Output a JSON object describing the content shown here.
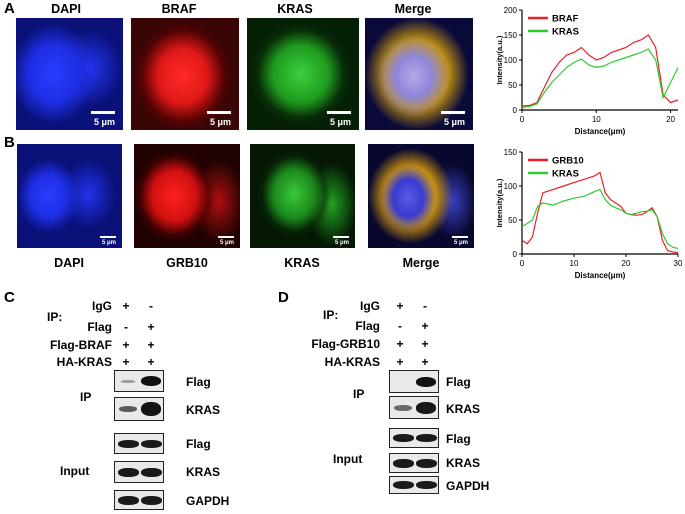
{
  "panel_letters": {
    "a": "A",
    "b": "B",
    "c": "C",
    "d": "D"
  },
  "row_a": {
    "titles": [
      "DAPI",
      "BRAF",
      "KRAS",
      "Merge"
    ],
    "scale_label": "5 μm"
  },
  "row_b": {
    "titles": [
      "DAPI",
      "GRB10",
      "KRAS",
      "Merge"
    ],
    "scale_label": "5 μm"
  },
  "colors": {
    "red": "#e8202a",
    "green": "#2ecc2e",
    "blue": "#1b2ee8"
  },
  "chart_data": [
    {
      "type": "line",
      "xlabel": "Distance(μm)",
      "ylabel": "Intensity(a.u.)",
      "xlim": [
        0,
        21
      ],
      "ylim": [
        0,
        200
      ],
      "xticks": [
        0,
        10,
        20
      ],
      "yticks": [
        0,
        50,
        100,
        150,
        200
      ],
      "legend_placement": "top-left",
      "series": [
        {
          "name": "BRAF",
          "color": "#e8202a",
          "x": [
            0,
            1,
            2,
            3,
            4,
            5,
            6,
            7,
            8,
            9,
            10,
            11,
            12,
            13,
            14,
            15,
            16,
            17,
            18,
            19,
            20,
            21
          ],
          "y": [
            8,
            9,
            15,
            45,
            75,
            95,
            110,
            115,
            125,
            110,
            100,
            105,
            115,
            120,
            125,
            135,
            140,
            150,
            125,
            30,
            15,
            20
          ]
        },
        {
          "name": "KRAS",
          "color": "#2ecc2e",
          "x": [
            0,
            1,
            2,
            3,
            4,
            5,
            6,
            7,
            8,
            9,
            10,
            11,
            12,
            13,
            14,
            15,
            16,
            17,
            18,
            19,
            20,
            21
          ],
          "y": [
            5,
            7,
            12,
            35,
            55,
            70,
            85,
            95,
            102,
            90,
            85,
            88,
            95,
            100,
            105,
            110,
            115,
            122,
            100,
            25,
            55,
            85
          ]
        }
      ]
    },
    {
      "type": "line",
      "xlabel": "Distance(μm)",
      "ylabel": "Intensity(a.u.)",
      "xlim": [
        0,
        30
      ],
      "ylim": [
        0,
        150
      ],
      "xticks": [
        0,
        10,
        20,
        30
      ],
      "yticks": [
        0,
        50,
        100,
        150
      ],
      "legend_placement": "top-left",
      "series": [
        {
          "name": "GRB10",
          "color": "#e8202a",
          "x": [
            0,
            1,
            2,
            3,
            4,
            6,
            8,
            10,
            12,
            14,
            15,
            16,
            17,
            18,
            19,
            20,
            21,
            22,
            23,
            24,
            25,
            26,
            27,
            28,
            29,
            30
          ],
          "y": [
            20,
            15,
            25,
            60,
            90,
            95,
            100,
            105,
            110,
            115,
            120,
            90,
            80,
            75,
            70,
            60,
            58,
            57,
            58,
            62,
            68,
            55,
            20,
            5,
            3,
            2
          ]
        },
        {
          "name": "KRAS",
          "color": "#2ecc2e",
          "x": [
            0,
            1,
            2,
            3,
            4,
            6,
            8,
            10,
            12,
            14,
            15,
            16,
            17,
            18,
            19,
            20,
            21,
            22,
            23,
            24,
            25,
            26,
            27,
            28,
            29,
            30
          ],
          "y": [
            40,
            45,
            50,
            70,
            75,
            72,
            78,
            82,
            85,
            92,
            95,
            80,
            72,
            68,
            65,
            60,
            58,
            60,
            62,
            63,
            65,
            55,
            30,
            15,
            10,
            8
          ]
        }
      ]
    }
  ],
  "panel_c": {
    "ip_label": "IP:",
    "rows": [
      {
        "label": "IgG",
        "signs": [
          "+",
          "-"
        ]
      },
      {
        "label": "Flag",
        "signs": [
          "-",
          "+"
        ]
      },
      {
        "label": "Flag-BRAF",
        "signs": [
          "+",
          "+"
        ]
      },
      {
        "label": "HA-KRAS",
        "signs": [
          "+",
          "+"
        ]
      }
    ],
    "group_ip": "IP",
    "group_input": "Input",
    "blot_labels": [
      "Flag",
      "KRAS",
      "Flag",
      "KRAS",
      "GAPDH"
    ]
  },
  "panel_d": {
    "ip_label": "IP:",
    "rows": [
      {
        "label": "IgG",
        "signs": [
          "+",
          "-"
        ]
      },
      {
        "label": "Flag",
        "signs": [
          "-",
          "+"
        ]
      },
      {
        "label": "Flag-GRB10",
        "signs": [
          "+",
          "+"
        ]
      },
      {
        "label": "HA-KRAS",
        "signs": [
          "+",
          "+"
        ]
      }
    ],
    "group_ip": "IP",
    "group_input": "Input",
    "blot_labels": [
      "Flag",
      "KRAS",
      "Flag",
      "KRAS",
      "GAPDH"
    ]
  }
}
